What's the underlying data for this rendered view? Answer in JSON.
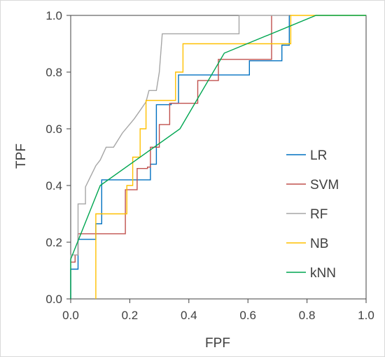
{
  "chart_data": {
    "type": "line",
    "title": "",
    "xlabel": "FPF",
    "ylabel": "TPF",
    "xlim": [
      0,
      1
    ],
    "ylim": [
      0,
      1
    ],
    "xticks": [
      "0.0",
      "0.2",
      "0.4",
      "0.6",
      "0.8",
      "1.0"
    ],
    "yticks": [
      "0.0",
      "0.2",
      "0.4",
      "0.6",
      "0.8",
      "1.0"
    ],
    "grid": false,
    "legend_position": "right",
    "series": [
      {
        "name": "LR",
        "color": "#0070c0",
        "points": [
          [
            0,
            0
          ],
          [
            0,
            0.105
          ],
          [
            0.025,
            0.105
          ],
          [
            0.025,
            0.21
          ],
          [
            0.085,
            0.21
          ],
          [
            0.085,
            0.265
          ],
          [
            0.105,
            0.265
          ],
          [
            0.105,
            0.42
          ],
          [
            0.27,
            0.42
          ],
          [
            0.27,
            0.475
          ],
          [
            0.29,
            0.475
          ],
          [
            0.29,
            0.685
          ],
          [
            0.34,
            0.685
          ],
          [
            0.34,
            0.69
          ],
          [
            0.365,
            0.69
          ],
          [
            0.365,
            0.79
          ],
          [
            0.605,
            0.79
          ],
          [
            0.605,
            0.84
          ],
          [
            0.715,
            0.84
          ],
          [
            0.715,
            0.895
          ],
          [
            0.74,
            0.895
          ],
          [
            0.74,
            1.0
          ]
        ]
      },
      {
        "name": "SVM",
        "color": "#c0504d",
        "points": [
          [
            0,
            0.13
          ],
          [
            0.015,
            0.13
          ],
          [
            0.015,
            0.155
          ],
          [
            0.025,
            0.155
          ],
          [
            0.025,
            0.23
          ],
          [
            0.185,
            0.23
          ],
          [
            0.185,
            0.385
          ],
          [
            0.225,
            0.385
          ],
          [
            0.225,
            0.46
          ],
          [
            0.26,
            0.46
          ],
          [
            0.26,
            0.465
          ],
          [
            0.27,
            0.465
          ],
          [
            0.27,
            0.535
          ],
          [
            0.3,
            0.535
          ],
          [
            0.3,
            0.615
          ],
          [
            0.335,
            0.615
          ],
          [
            0.335,
            0.69
          ],
          [
            0.43,
            0.69
          ],
          [
            0.43,
            0.77
          ],
          [
            0.5,
            0.77
          ],
          [
            0.5,
            0.845
          ],
          [
            0.68,
            0.845
          ],
          [
            0.68,
            1.0
          ]
        ]
      },
      {
        "name": "RF",
        "color": "#a6a6a6",
        "points": [
          [
            0,
            0
          ],
          [
            0,
            0.155
          ],
          [
            0.025,
            0.155
          ],
          [
            0.025,
            0.335
          ],
          [
            0.05,
            0.335
          ],
          [
            0.05,
            0.395
          ],
          [
            0.085,
            0.47
          ],
          [
            0.1,
            0.49
          ],
          [
            0.12,
            0.535
          ],
          [
            0.145,
            0.535
          ],
          [
            0.175,
            0.585
          ],
          [
            0.215,
            0.635
          ],
          [
            0.235,
            0.665
          ],
          [
            0.255,
            0.695
          ],
          [
            0.265,
            0.735
          ],
          [
            0.29,
            0.735
          ],
          [
            0.3,
            0.8
          ],
          [
            0.31,
            0.935
          ],
          [
            0.57,
            0.935
          ],
          [
            0.57,
            1.0
          ],
          [
            0.74,
            1.0
          ]
        ]
      },
      {
        "name": "NB",
        "color": "#ffc000",
        "points": [
          [
            0.085,
            0
          ],
          [
            0.085,
            0.3
          ],
          [
            0.19,
            0.3
          ],
          [
            0.19,
            0.4
          ],
          [
            0.21,
            0.4
          ],
          [
            0.21,
            0.5
          ],
          [
            0.235,
            0.5
          ],
          [
            0.235,
            0.6
          ],
          [
            0.255,
            0.6
          ],
          [
            0.255,
            0.7
          ],
          [
            0.355,
            0.7
          ],
          [
            0.355,
            0.8
          ],
          [
            0.38,
            0.8
          ],
          [
            0.38,
            0.9
          ],
          [
            0.745,
            0.9
          ],
          [
            0.745,
            1.0
          ],
          [
            1.0,
            1.0
          ]
        ]
      },
      {
        "name": "kNN",
        "color": "#00a651",
        "points": [
          [
            0,
            0
          ],
          [
            0,
            0.14
          ],
          [
            0.1,
            0.4
          ],
          [
            0.37,
            0.6
          ],
          [
            0.52,
            0.867
          ],
          [
            0.83,
            1.0
          ],
          [
            1.0,
            1.0
          ]
        ]
      }
    ]
  }
}
